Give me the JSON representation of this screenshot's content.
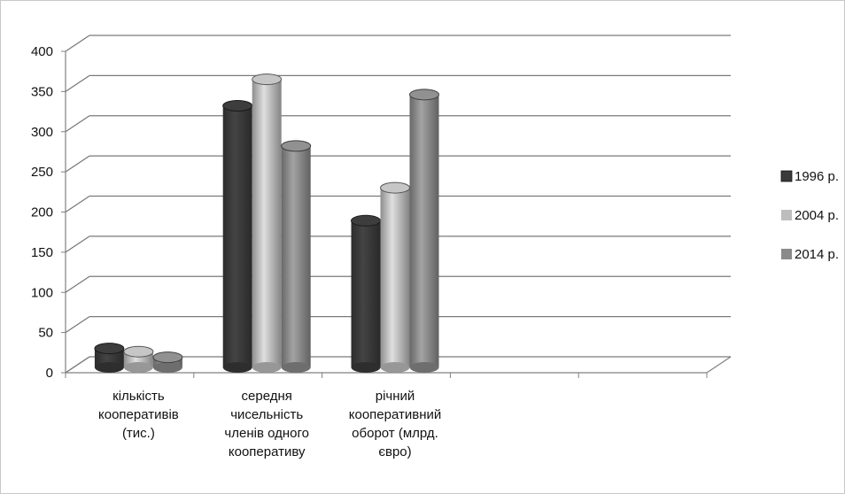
{
  "chart_data": {
    "type": "bar",
    "title": "",
    "xlabel": "",
    "ylabel": "",
    "ylim": [
      0,
      400
    ],
    "yticks": [
      0,
      50,
      100,
      150,
      200,
      250,
      300,
      350,
      400
    ],
    "grid": true,
    "legend_position": "right",
    "categories": [
      [
        "кількість",
        "кооперативів",
        "(тис.)"
      ],
      [
        "середня",
        "чисельність",
        "членів одного",
        "кооперативу"
      ],
      [
        "річний",
        "кооперативний",
        "оборот (млрд.",
        "євро)"
      ]
    ],
    "series": [
      {
        "name": "1996 р.",
        "color": "#3a3a3a",
        "values": [
          28,
          330,
          187
        ]
      },
      {
        "name": "2004 р.",
        "color": "#bdbdbd",
        "values": [
          24,
          363,
          228
        ]
      },
      {
        "name": "2014 р.",
        "color": "#8a8a8a",
        "values": [
          17,
          280,
          344
        ]
      }
    ]
  }
}
